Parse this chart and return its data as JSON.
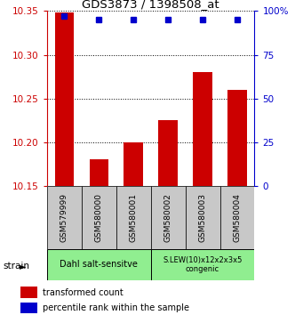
{
  "title": "GDS3873 / 1398508_at",
  "samples": [
    "GSM579999",
    "GSM580000",
    "GSM580001",
    "GSM580002",
    "GSM580003",
    "GSM580004"
  ],
  "red_values": [
    10.348,
    10.18,
    10.2,
    10.225,
    10.28,
    10.26
  ],
  "blue_values": [
    97,
    95,
    95,
    95,
    95,
    95
  ],
  "ylim_left": [
    10.15,
    10.35
  ],
  "ylim_right": [
    0,
    100
  ],
  "yticks_left": [
    10.15,
    10.2,
    10.25,
    10.3,
    10.35
  ],
  "yticks_right": [
    0,
    25,
    50,
    75,
    100
  ],
  "ytick_labels_right": [
    "0",
    "25",
    "50",
    "75",
    "100%"
  ],
  "bar_color": "#cc0000",
  "dot_color": "#0000cc",
  "baseline": 10.15,
  "group1_label": "Dahl salt-sensitve",
  "group2_label": "S.LEW(10)x12x2x3x5\ncongenic",
  "group1_indices": [
    0,
    1,
    2
  ],
  "group2_indices": [
    3,
    4,
    5
  ],
  "group_bg_color": "#90ee90",
  "strain_label": "strain",
  "legend1": "transformed count",
  "legend2": "percentile rank within the sample",
  "tick_area_bg": "#c8c8c8"
}
